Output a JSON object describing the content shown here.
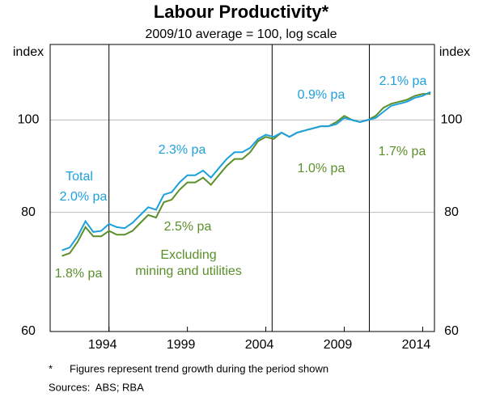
{
  "chart_data": {
    "type": "line",
    "title": "Labour Productivity*",
    "subtitle": "2009/10 average = 100, log scale",
    "ylabel": "index",
    "y2label": "index",
    "log_scale": true,
    "grid": true,
    "xlim": [
      1990.25,
      2014.75
    ],
    "xticks": [
      1994,
      1999,
      2004,
      2009,
      2014
    ],
    "ylim": [
      60,
      120
    ],
    "yticks": [
      60,
      80,
      100
    ],
    "period_breaks": [
      1994.0,
      2004.4,
      2010.6
    ],
    "x": [
      1991.0,
      1991.5,
      1992.0,
      1992.5,
      1993.0,
      1993.5,
      1994.0,
      1994.5,
      1995.0,
      1995.5,
      1996.0,
      1996.5,
      1997.0,
      1997.5,
      1998.0,
      1998.5,
      1999.0,
      1999.5,
      2000.0,
      2000.5,
      2001.0,
      2001.5,
      2002.0,
      2002.5,
      2003.0,
      2003.5,
      2004.0,
      2004.5,
      2005.0,
      2005.5,
      2006.0,
      2006.5,
      2007.0,
      2007.5,
      2008.0,
      2008.5,
      2009.0,
      2009.5,
      2010.0,
      2010.5,
      2011.0,
      2011.5,
      2012.0,
      2012.5,
      2013.0,
      2013.5,
      2014.0,
      2014.5
    ],
    "series": [
      {
        "name": "Total",
        "color": "#1ea0dc",
        "values": [
          73.0,
          73.5,
          75.5,
          78.3,
          76.3,
          76.5,
          77.8,
          77.2,
          77.0,
          78.0,
          79.5,
          81.0,
          80.5,
          83.5,
          84.0,
          86.0,
          87.5,
          87.5,
          88.5,
          87.0,
          89.0,
          91.0,
          92.5,
          92.5,
          93.5,
          95.5,
          96.5,
          96.0,
          97.0,
          96.0,
          97.0,
          97.5,
          98.0,
          98.5,
          98.5,
          99.0,
          100.5,
          100.0,
          99.5,
          100.0,
          100.5,
          102.0,
          103.5,
          104.0,
          104.5,
          105.5,
          106.0,
          107.0
        ],
        "period_labels": [
          "2.0% pa",
          "2.3% pa",
          "0.9% pa",
          "2.1% pa"
        ]
      },
      {
        "name": "Excluding\nmining and utilities",
        "color": "#5a8f2a",
        "values": [
          72.0,
          72.5,
          74.5,
          77.2,
          75.5,
          75.5,
          76.5,
          75.8,
          75.8,
          76.5,
          78.0,
          79.5,
          79.0,
          82.0,
          82.5,
          84.5,
          86.0,
          86.0,
          87.0,
          85.5,
          87.5,
          89.5,
          91.0,
          91.0,
          92.5,
          95.0,
          96.0,
          95.5,
          97.0,
          96.0,
          97.0,
          97.5,
          98.0,
          98.5,
          98.5,
          99.5,
          101.0,
          100.0,
          99.5,
          100.0,
          101.0,
          103.0,
          104.0,
          104.5,
          105.0,
          106.0,
          106.5,
          106.5
        ],
        "period_labels": [
          "1.8% pa",
          "2.5% pa",
          "1.0% pa",
          "1.7% pa"
        ]
      }
    ],
    "footnote_marker": "*",
    "footnote": "Figures represent trend growth during the period shown",
    "source": "Sources:  ABS; RBA"
  }
}
